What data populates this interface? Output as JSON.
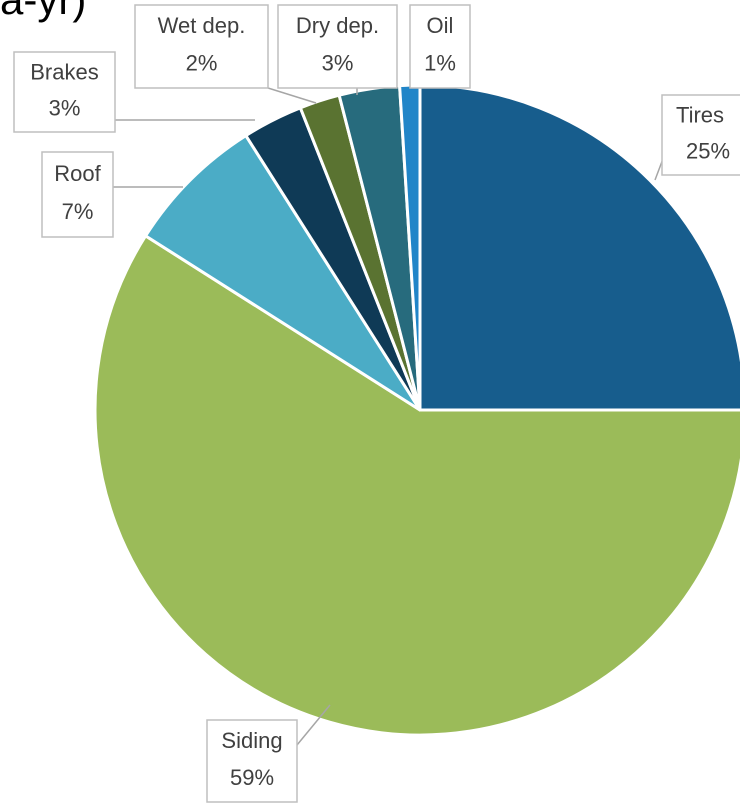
{
  "chart_data": {
    "type": "pie",
    "title": "a-yr)",
    "categories": [
      "Tires",
      "Siding",
      "Roof",
      "Brakes",
      "Wet dep.",
      "Dry dep.",
      "Oil"
    ],
    "values": [
      25,
      59,
      7,
      3,
      2,
      3,
      1
    ],
    "value_labels": [
      "25%",
      "59%",
      "7%",
      "3%",
      "2%",
      "3%",
      "1%"
    ],
    "colors": [
      "#175d8d",
      "#9bbb59",
      "#4bacc6",
      "#0f3a56",
      "#5a7331",
      "#276b7d",
      "#2185c8"
    ]
  }
}
